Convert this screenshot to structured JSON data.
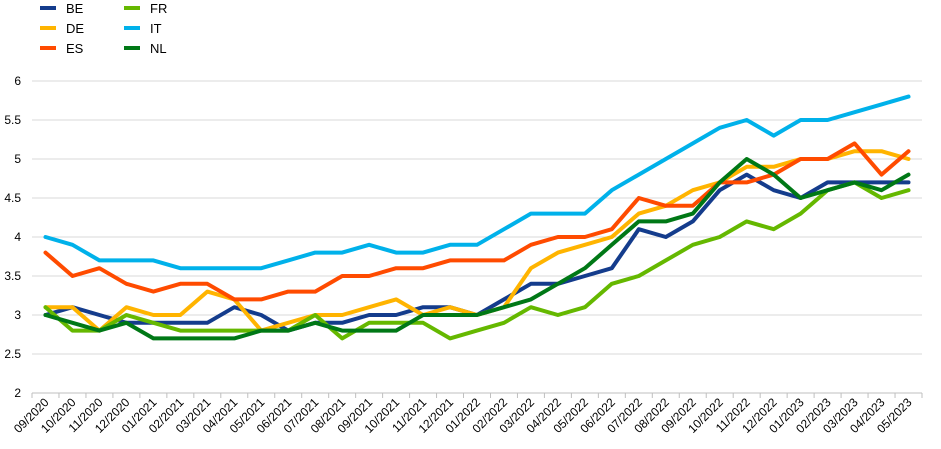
{
  "chart_data": {
    "type": "line",
    "title": "",
    "xlabel": "",
    "ylabel": "",
    "ylim": [
      2,
      6
    ],
    "yticks": [
      "2",
      "2.5",
      "3",
      "3.5",
      "4",
      "4.5",
      "5",
      "5.5",
      "6"
    ],
    "grid": true,
    "legend_position": "top-left",
    "categories": [
      "09/2020",
      "10/2020",
      "11/2020",
      "12/2020",
      "01/2021",
      "02/2021",
      "03/2021",
      "04/2021",
      "05/2021",
      "06/2021",
      "07/2021",
      "08/2021",
      "09/2021",
      "10/2021",
      "11/2021",
      "12/2021",
      "01/2022",
      "02/2022",
      "03/2022",
      "04/2022",
      "05/2022",
      "06/2022",
      "07/2022",
      "08/2022",
      "09/2022",
      "10/2022",
      "11/2022",
      "12/2022",
      "01/2023",
      "02/2023",
      "03/2023",
      "04/2023",
      "05/2023"
    ],
    "series": [
      {
        "name": "BE",
        "color": "#143c8c",
        "values": [
          3.0,
          3.1,
          3.0,
          2.9,
          2.9,
          2.9,
          2.9,
          3.1,
          3.0,
          2.8,
          2.9,
          2.9,
          3.0,
          3.0,
          3.1,
          3.1,
          3.0,
          3.2,
          3.4,
          3.4,
          3.5,
          3.6,
          4.1,
          4.0,
          4.2,
          4.6,
          4.8,
          4.6,
          4.5,
          4.7,
          4.7,
          4.7,
          4.7
        ]
      },
      {
        "name": "DE",
        "color": "#ffb400",
        "values": [
          3.1,
          3.1,
          2.8,
          3.1,
          3.0,
          3.0,
          3.3,
          3.2,
          2.8,
          2.9,
          3.0,
          3.0,
          3.1,
          3.2,
          3.0,
          3.1,
          3.0,
          3.1,
          3.6,
          3.8,
          3.9,
          4.0,
          4.3,
          4.4,
          4.6,
          4.7,
          4.9,
          4.9,
          5.0,
          5.0,
          5.1,
          5.1,
          5.0
        ]
      },
      {
        "name": "ES",
        "color": "#ff4b00",
        "values": [
          3.8,
          3.5,
          3.6,
          3.4,
          3.3,
          3.4,
          3.4,
          3.2,
          3.2,
          3.3,
          3.3,
          3.5,
          3.5,
          3.6,
          3.6,
          3.7,
          3.7,
          3.7,
          3.9,
          4.0,
          4.0,
          4.1,
          4.5,
          4.4,
          4.4,
          4.7,
          4.7,
          4.8,
          5.0,
          5.0,
          5.2,
          4.8,
          5.1
        ]
      },
      {
        "name": "FR",
        "color": "#65b800",
        "values": [
          3.1,
          2.8,
          2.8,
          3.0,
          2.9,
          2.8,
          2.8,
          2.8,
          2.8,
          2.8,
          3.0,
          2.7,
          2.9,
          2.9,
          2.9,
          2.7,
          2.8,
          2.9,
          3.1,
          3.0,
          3.1,
          3.4,
          3.5,
          3.7,
          3.9,
          4.0,
          4.2,
          4.1,
          4.3,
          4.6,
          4.7,
          4.5,
          4.6
        ]
      },
      {
        "name": "IT",
        "color": "#00b1ea",
        "values": [
          4.0,
          3.9,
          3.7,
          3.7,
          3.7,
          3.6,
          3.6,
          3.6,
          3.6,
          3.7,
          3.8,
          3.8,
          3.9,
          3.8,
          3.8,
          3.9,
          3.9,
          4.1,
          4.3,
          4.3,
          4.3,
          4.6,
          4.8,
          5.0,
          5.2,
          5.4,
          5.5,
          5.3,
          5.5,
          5.5,
          5.6,
          5.7,
          5.8
        ]
      },
      {
        "name": "NL",
        "color": "#007816",
        "values": [
          3.0,
          2.9,
          2.8,
          2.9,
          2.7,
          2.7,
          2.7,
          2.7,
          2.8,
          2.8,
          2.9,
          2.8,
          2.8,
          2.8,
          3.0,
          3.0,
          3.0,
          3.1,
          3.2,
          3.4,
          3.6,
          3.9,
          4.2,
          4.2,
          4.3,
          4.7,
          5.0,
          4.8,
          4.5,
          4.6,
          4.7,
          4.6,
          4.8
        ]
      }
    ]
  }
}
